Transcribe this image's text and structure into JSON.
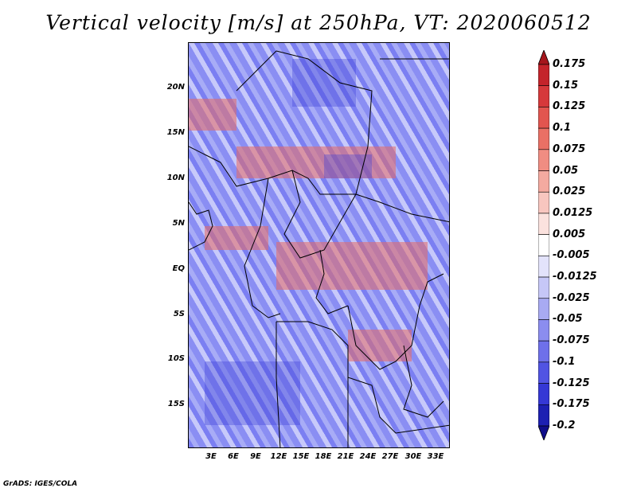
{
  "title": "Vertical velocity [m/s] at 250hPa, VT: 2020060512",
  "lat_labels": [
    "20N",
    "15N",
    "10N",
    "5N",
    "EQ",
    "5S",
    "10S",
    "15S"
  ],
  "lon_labels": [
    "3E",
    "6E",
    "9E",
    "12E",
    "15E",
    "18E",
    "21E",
    "24E",
    "27E",
    "30E",
    "33E"
  ],
  "colorbar": {
    "levels": [
      "0.175",
      "0.15",
      "0.125",
      "0.1",
      "0.075",
      "0.05",
      "0.025",
      "0.0125",
      "0.005",
      "-0.005",
      "-0.0125",
      "-0.025",
      "-0.05",
      "-0.075",
      "-0.1",
      "-0.125",
      "-0.175",
      "-0.2"
    ],
    "colors": [
      "#a5161c",
      "#c4242b",
      "#d6393b",
      "#e2554f",
      "#ea7065",
      "#f08d82",
      "#f4aaa0",
      "#f8c6bf",
      "#fbe2de",
      "#ffffff",
      "#e3e3fb",
      "#c6c7f7",
      "#a8aaf2",
      "#8b8def",
      "#6e70ea",
      "#5154e3",
      "#3538d5",
      "#1d20b2",
      "#100e8a"
    ]
  },
  "footer": "GrADS: IGES/COLA"
}
